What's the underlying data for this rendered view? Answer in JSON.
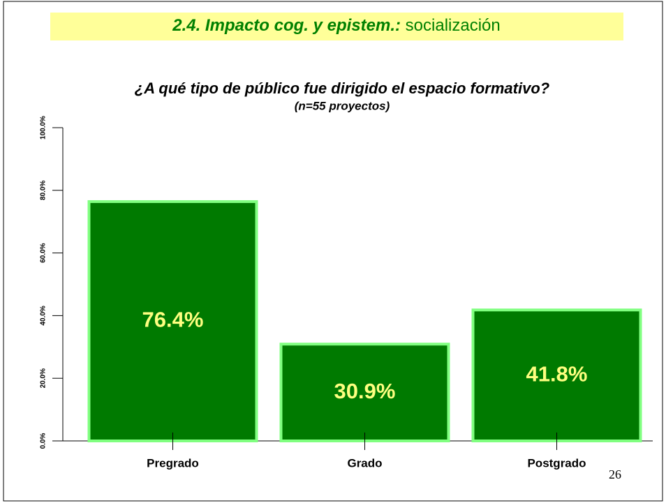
{
  "header": {
    "title": "2.4. Impacto cog. y epistem.:",
    "subtitle": "socialización"
  },
  "page_number": "26",
  "chart_data": {
    "type": "bar",
    "title": "¿A qué tipo de público fue dirigido el espacio formativo?",
    "subtitle": "(n=55 proyectos)",
    "categories": [
      "Pregrado",
      "Grado",
      "Postgrado"
    ],
    "values": [
      76.4,
      30.9,
      41.8
    ],
    "value_labels": [
      "76.4%",
      "30.9%",
      "41.8%"
    ],
    "color": "#007a00",
    "edge_color": "#80ff80",
    "label_color": "#ffff80",
    "ylim": [
      0,
      100
    ],
    "yticks": [
      {
        "value": 0,
        "label": "0.0%"
      },
      {
        "value": 20,
        "label": "20.0%"
      },
      {
        "value": 40,
        "label": "40.0%"
      },
      {
        "value": 60,
        "label": "60.0%"
      },
      {
        "value": 80,
        "label": "80.0%"
      },
      {
        "value": 100,
        "label": "100.0%"
      }
    ],
    "grid": false
  }
}
